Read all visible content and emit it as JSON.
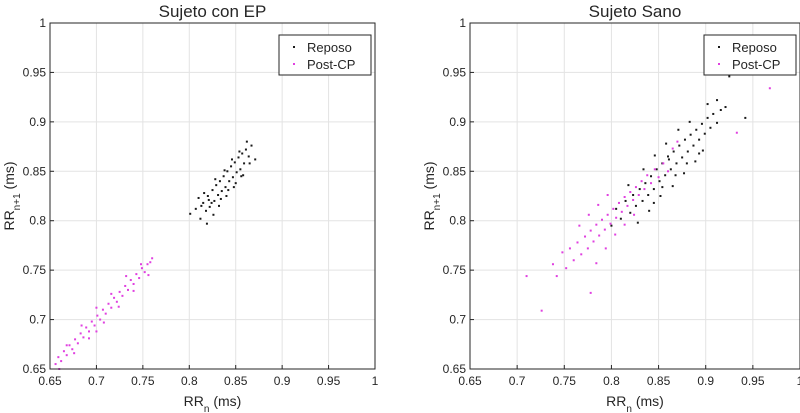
{
  "chart_data": [
    {
      "type": "scatter",
      "title": "Sujeto con EP",
      "xlabel": {
        "main": "RR",
        "sub": "n",
        "unit": " (ms)"
      },
      "ylabel": {
        "main": "RR",
        "sub": "n+1",
        "unit": " (ms)"
      },
      "xlim": [
        0.65,
        1
      ],
      "ylim": [
        0.65,
        1
      ],
      "xticks": [
        "0.65",
        "0.7",
        "0.75",
        "0.8",
        "0.85",
        "0.9",
        "0.95",
        "1"
      ],
      "yticks": [
        "0.65",
        "0.7",
        "0.75",
        "0.8",
        "0.85",
        "0.9",
        "0.95",
        "1"
      ],
      "grid": true,
      "legend_position": "top-right",
      "series": [
        {
          "name": "Reposo",
          "color": "#1a1a1a",
          "points": [
            [
              0.801,
              0.807
            ],
            [
              0.807,
              0.812
            ],
            [
              0.812,
              0.802
            ],
            [
              0.815,
              0.818
            ],
            [
              0.818,
              0.81
            ],
            [
              0.82,
              0.825
            ],
            [
              0.822,
              0.814
            ],
            [
              0.825,
              0.831
            ],
            [
              0.827,
              0.82
            ],
            [
              0.829,
              0.836
            ],
            [
              0.831,
              0.826
            ],
            [
              0.833,
              0.84
            ],
            [
              0.835,
              0.83
            ],
            [
              0.837,
              0.845
            ],
            [
              0.839,
              0.834
            ],
            [
              0.841,
              0.85
            ],
            [
              0.843,
              0.84
            ],
            [
              0.845,
              0.855
            ],
            [
              0.847,
              0.844
            ],
            [
              0.849,
              0.859
            ],
            [
              0.851,
              0.849
            ],
            [
              0.853,
              0.864
            ],
            [
              0.855,
              0.852
            ],
            [
              0.857,
              0.868
            ],
            [
              0.859,
              0.858
            ],
            [
              0.861,
              0.872
            ],
            [
              0.864,
              0.865
            ],
            [
              0.867,
              0.876
            ],
            [
              0.81,
              0.823
            ],
            [
              0.816,
              0.828
            ],
            [
              0.824,
              0.818
            ],
            [
              0.828,
              0.842
            ],
            [
              0.834,
              0.822
            ],
            [
              0.838,
              0.851
            ],
            [
              0.842,
              0.831
            ],
            [
              0.846,
              0.862
            ],
            [
              0.85,
              0.838
            ],
            [
              0.854,
              0.87
            ],
            [
              0.858,
              0.846
            ],
            [
              0.862,
              0.88
            ],
            [
              0.819,
              0.797
            ],
            [
              0.826,
              0.806
            ],
            [
              0.832,
              0.815
            ],
            [
              0.84,
              0.825
            ],
            [
              0.848,
              0.834
            ],
            [
              0.856,
              0.845
            ],
            [
              0.865,
              0.858
            ],
            [
              0.871,
              0.862
            ],
            [
              0.813,
              0.815
            ],
            [
              0.821,
              0.821
            ]
          ]
        },
        {
          "name": "Post-CP",
          "color": "#e040e0",
          "points": [
            [
              0.656,
              0.655
            ],
            [
              0.659,
              0.662
            ],
            [
              0.662,
              0.658
            ],
            [
              0.665,
              0.668
            ],
            [
              0.668,
              0.664
            ],
            [
              0.671,
              0.674
            ],
            [
              0.674,
              0.67
            ],
            [
              0.677,
              0.68
            ],
            [
              0.68,
              0.676
            ],
            [
              0.683,
              0.686
            ],
            [
              0.686,
              0.682
            ],
            [
              0.689,
              0.692
            ],
            [
              0.692,
              0.688
            ],
            [
              0.695,
              0.698
            ],
            [
              0.698,
              0.694
            ],
            [
              0.701,
              0.704
            ],
            [
              0.704,
              0.7
            ],
            [
              0.707,
              0.71
            ],
            [
              0.71,
              0.706
            ],
            [
              0.713,
              0.716
            ],
            [
              0.716,
              0.712
            ],
            [
              0.719,
              0.722
            ],
            [
              0.722,
              0.718
            ],
            [
              0.725,
              0.728
            ],
            [
              0.728,
              0.724
            ],
            [
              0.731,
              0.734
            ],
            [
              0.734,
              0.73
            ],
            [
              0.737,
              0.74
            ],
            [
              0.74,
              0.736
            ],
            [
              0.743,
              0.746
            ],
            [
              0.746,
              0.742
            ],
            [
              0.749,
              0.752
            ],
            [
              0.752,
              0.748
            ],
            [
              0.755,
              0.756
            ],
            [
              0.758,
              0.758
            ],
            [
              0.76,
              0.762
            ],
            [
              0.668,
              0.674
            ],
            [
              0.684,
              0.694
            ],
            [
              0.7,
              0.712
            ],
            [
              0.716,
              0.726
            ],
            [
              0.732,
              0.744
            ],
            [
              0.748,
              0.756
            ],
            [
              0.676,
              0.666
            ],
            [
              0.692,
              0.681
            ],
            [
              0.708,
              0.697
            ],
            [
              0.724,
              0.713
            ],
            [
              0.74,
              0.729
            ],
            [
              0.756,
              0.745
            ],
            [
              0.7,
              0.688
            ],
            [
              0.66,
              0.65
            ]
          ]
        }
      ]
    },
    {
      "type": "scatter",
      "title": "Sujeto Sano",
      "xlabel": {
        "main": "RR",
        "sub": "n",
        "unit": " (ms)"
      },
      "ylabel": {
        "main": "RR",
        "sub": "n+1",
        "unit": " (ms)"
      },
      "xlim": [
        0.65,
        1
      ],
      "ylim": [
        0.65,
        1
      ],
      "xticks": [
        "0.65",
        "0.7",
        "0.75",
        "0.8",
        "0.85",
        "0.9",
        "0.95",
        "1"
      ],
      "yticks": [
        "0.65",
        "0.7",
        "0.75",
        "0.8",
        "0.85",
        "0.9",
        "0.95",
        "1"
      ],
      "grid": true,
      "legend_position": "top-right",
      "series": [
        {
          "name": "Reposo",
          "color": "#1a1a1a",
          "points": [
            [
              0.8,
              0.795
            ],
            [
              0.805,
              0.812
            ],
            [
              0.81,
              0.802
            ],
            [
              0.815,
              0.82
            ],
            [
              0.82,
              0.808
            ],
            [
              0.823,
              0.826
            ],
            [
              0.826,
              0.815
            ],
            [
              0.83,
              0.832
            ],
            [
              0.833,
              0.82
            ],
            [
              0.836,
              0.838
            ],
            [
              0.839,
              0.826
            ],
            [
              0.842,
              0.845
            ],
            [
              0.845,
              0.832
            ],
            [
              0.848,
              0.852
            ],
            [
              0.851,
              0.84
            ],
            [
              0.854,
              0.858
            ],
            [
              0.857,
              0.846
            ],
            [
              0.86,
              0.865
            ],
            [
              0.863,
              0.852
            ],
            [
              0.866,
              0.87
            ],
            [
              0.869,
              0.858
            ],
            [
              0.872,
              0.876
            ],
            [
              0.875,
              0.864
            ],
            [
              0.878,
              0.882
            ],
            [
              0.881,
              0.87
            ],
            [
              0.884,
              0.887
            ],
            [
              0.887,
              0.876
            ],
            [
              0.89,
              0.892
            ],
            [
              0.893,
              0.882
            ],
            [
              0.896,
              0.898
            ],
            [
              0.899,
              0.888
            ],
            [
              0.902,
              0.904
            ],
            [
              0.905,
              0.894
            ],
            [
              0.908,
              0.908
            ],
            [
              0.912,
              0.899
            ],
            [
              0.916,
              0.912
            ],
            [
              0.921,
              0.915
            ],
            [
              0.925,
              0.946
            ],
            [
              0.942,
              0.904
            ],
            [
              0.828,
              0.798
            ],
            [
              0.84,
              0.81
            ],
            [
              0.852,
              0.825
            ],
            [
              0.865,
              0.835
            ],
            [
              0.877,
              0.848
            ],
            [
              0.889,
              0.86
            ],
            [
              0.897,
              0.871
            ],
            [
              0.871,
              0.892
            ],
            [
              0.883,
              0.9
            ],
            [
              0.858,
              0.878
            ],
            [
              0.846,
              0.866
            ],
            [
              0.834,
              0.852
            ],
            [
              0.818,
              0.836
            ],
            [
              0.902,
              0.918
            ],
            [
              0.912,
              0.922
            ],
            [
              0.854,
              0.834
            ],
            [
              0.868,
              0.846
            ],
            [
              0.88,
              0.858
            ],
            [
              0.893,
              0.868
            ],
            [
              0.845,
              0.818
            ],
            [
              0.861,
              0.862
            ]
          ]
        },
        {
          "name": "Post-CP",
          "color": "#e040e0",
          "points": [
            [
              0.71,
              0.744
            ],
            [
              0.726,
              0.709
            ],
            [
              0.738,
              0.756
            ],
            [
              0.742,
              0.744
            ],
            [
              0.748,
              0.768
            ],
            [
              0.752,
              0.752
            ],
            [
              0.756,
              0.772
            ],
            [
              0.76,
              0.76
            ],
            [
              0.764,
              0.778
            ],
            [
              0.768,
              0.766
            ],
            [
              0.772,
              0.784
            ],
            [
              0.775,
              0.772
            ],
            [
              0.778,
              0.79
            ],
            [
              0.781,
              0.779
            ],
            [
              0.784,
              0.796
            ],
            [
              0.787,
              0.785
            ],
            [
              0.79,
              0.801
            ],
            [
              0.793,
              0.791
            ],
            [
              0.796,
              0.806
            ],
            [
              0.799,
              0.797
            ],
            [
              0.802,
              0.812
            ],
            [
              0.805,
              0.803
            ],
            [
              0.808,
              0.818
            ],
            [
              0.811,
              0.809
            ],
            [
              0.814,
              0.824
            ],
            [
              0.817,
              0.815
            ],
            [
              0.82,
              0.829
            ],
            [
              0.823,
              0.821
            ],
            [
              0.826,
              0.834
            ],
            [
              0.829,
              0.826
            ],
            [
              0.832,
              0.84
            ],
            [
              0.835,
              0.832
            ],
            [
              0.838,
              0.846
            ],
            [
              0.842,
              0.838
            ],
            [
              0.846,
              0.852
            ],
            [
              0.85,
              0.844
            ],
            [
              0.855,
              0.858
            ],
            [
              0.86,
              0.85
            ],
            [
              0.766,
              0.795
            ],
            [
              0.776,
              0.806
            ],
            [
              0.786,
              0.816
            ],
            [
              0.796,
              0.826
            ],
            [
              0.778,
              0.727
            ],
            [
              0.784,
              0.757
            ],
            [
              0.794,
              0.772
            ],
            [
              0.804,
              0.786
            ],
            [
              0.814,
              0.796
            ],
            [
              0.824,
              0.806
            ],
            [
              0.933,
              0.889
            ],
            [
              0.968,
              0.934
            ],
            [
              0.865,
              0.873
            ],
            [
              0.87,
              0.88
            ]
          ]
        }
      ]
    }
  ]
}
